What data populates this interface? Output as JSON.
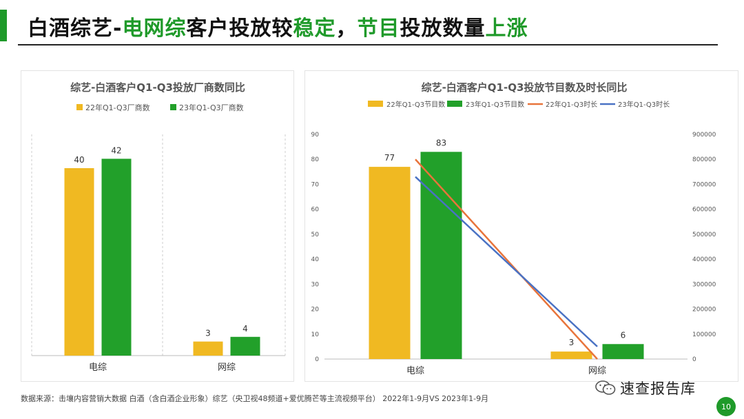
{
  "slide": {
    "title_parts": [
      "白酒综艺-",
      "电网综",
      "客户投放较",
      "稳定",
      "，",
      "节目",
      "投放数量",
      "上涨"
    ],
    "footnote": "数据来源：击壤内容营销大数据    白酒（含白酒企业形象）综艺（央卫视48频道+爱优腾芒等主流视频平台）  2022年1-9月VS 2023年1-9月",
    "brand": "速查报告库",
    "page_number": "10"
  },
  "colors": {
    "yellow": "#F0B922",
    "green": "#22A02A",
    "orange": "#E8743B",
    "blue": "#4A72C4",
    "accent": "#1f9a2a"
  },
  "chart_data": [
    {
      "type": "bar",
      "title": "综艺-白酒客户Q1-Q3投放厂商数同比",
      "categories": [
        "电综",
        "网综"
      ],
      "series": [
        {
          "name": "22年Q1-Q3厂商数",
          "values": [
            40,
            3
          ]
        },
        {
          "name": "23年Q1-Q3厂商数",
          "values": [
            42,
            4
          ]
        }
      ],
      "legend": "top",
      "grid": false
    },
    {
      "type": "bar",
      "title": "综艺-白酒客户Q1-Q3投放节目数及时长同比",
      "categories": [
        "电综",
        "网综"
      ],
      "series": [
        {
          "name": "22年Q1-Q3节目数",
          "type": "bar",
          "values": [
            77,
            3
          ]
        },
        {
          "name": "23年Q1-Q3节目数",
          "type": "bar",
          "values": [
            83,
            6
          ]
        },
        {
          "name": "22年Q1-Q3时长",
          "type": "line",
          "axis": "right",
          "values": [
            800000,
            0
          ]
        },
        {
          "name": "23年Q1-Q3时长",
          "type": "line",
          "axis": "right",
          "values": [
            730000,
            50000
          ]
        }
      ],
      "y_left": {
        "ticks": [
          "0",
          "10",
          "20",
          "30",
          "40",
          "50",
          "60",
          "70",
          "80",
          "90"
        ],
        "range": [
          0,
          90
        ]
      },
      "y_right": {
        "ticks": [
          "0",
          "100000",
          "200000",
          "300000",
          "400000",
          "500000",
          "600000",
          "700000",
          "800000",
          "900000"
        ],
        "range": [
          0,
          900000
        ]
      },
      "legend": "top",
      "grid": false
    }
  ]
}
